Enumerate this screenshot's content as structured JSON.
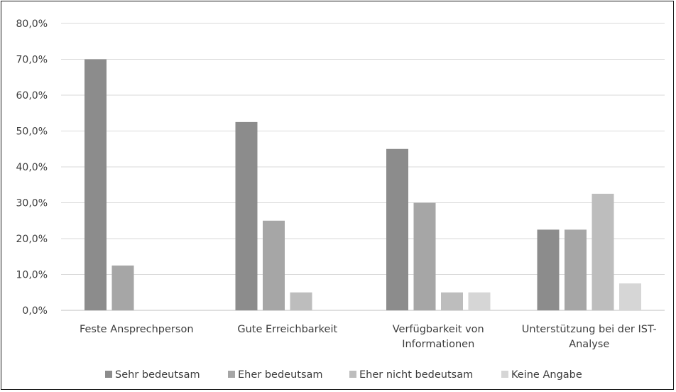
{
  "chart_data": {
    "type": "bar",
    "title": "",
    "xlabel": "",
    "ylabel": "",
    "ylim": [
      0,
      80
    ],
    "y_ticks": [
      0,
      10,
      20,
      30,
      40,
      50,
      60,
      70,
      80
    ],
    "y_tick_labels": [
      "0,0%",
      "10,0%",
      "20,0%",
      "30,0%",
      "40,0%",
      "50,0%",
      "60,0%",
      "70,0%",
      "80,0%"
    ],
    "grid": true,
    "legend_position": "bottom",
    "categories": [
      [
        "Feste Ansprechperson"
      ],
      [
        "Gute Erreichbarkeit"
      ],
      [
        "Verfügbarkeit von",
        "Informationen"
      ],
      [
        "Unterstützung bei der IST-",
        "Analyse"
      ]
    ],
    "series": [
      {
        "name": "Sehr bedeutsam",
        "color": "#8c8c8c",
        "values": [
          70,
          52.5,
          45,
          22.5
        ]
      },
      {
        "name": "Eher bedeutsam",
        "color": "#a6a6a6",
        "values": [
          12.5,
          25,
          30,
          22.5
        ]
      },
      {
        "name": "Eher nicht bedeutsam",
        "color": "#bdbdbd",
        "values": [
          0,
          5,
          5,
          32.5
        ]
      },
      {
        "name": "Keine Angabe",
        "color": "#d6d6d6",
        "values": [
          0,
          0,
          5,
          7.5
        ]
      }
    ]
  }
}
